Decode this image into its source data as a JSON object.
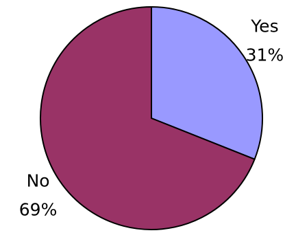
{
  "chart_data": {
    "type": "pie",
    "categories": [
      "Yes",
      "No"
    ],
    "values": [
      31,
      69
    ],
    "value_labels": [
      "31%",
      "69%"
    ],
    "colors": [
      "#9999ff",
      "#993366"
    ]
  }
}
